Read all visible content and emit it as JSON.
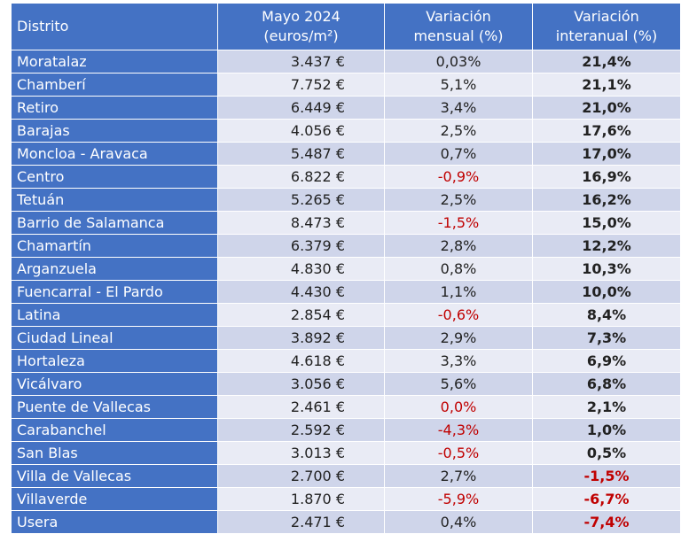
{
  "header": {
    "district": "Distrito",
    "price_l1": "Mayo 2024",
    "price_l2": "(euros/m²)",
    "monthly_l1": "Variación",
    "monthly_l2": "mensual (%)",
    "yearly_l1": "Variación",
    "yearly_l2": "interanual (%)"
  },
  "colors": {
    "header_bg": "#4472c4",
    "row_odd": "#cfd5ea",
    "row_even": "#e9ebf5",
    "negative": "#c00000"
  },
  "rows": [
    {
      "district": "Moratalaz",
      "price": "3.437 €",
      "monthly": "0,03%",
      "yearly": "21,4%"
    },
    {
      "district": "Chamberí",
      "price": "7.752 €",
      "monthly": "5,1%",
      "yearly": "21,1%"
    },
    {
      "district": "Retiro",
      "price": "6.449 €",
      "monthly": "3,4%",
      "yearly": "21,0%"
    },
    {
      "district": "Barajas",
      "price": "4.056 €",
      "monthly": "2,5%",
      "yearly": "17,6%"
    },
    {
      "district": "Moncloa - Aravaca",
      "price": "5.487 €",
      "monthly": "0,7%",
      "yearly": "17,0%"
    },
    {
      "district": "Centro",
      "price": "6.822 €",
      "monthly": "-0,9%",
      "yearly": "16,9%",
      "monthly_neg": true
    },
    {
      "district": "Tetuán",
      "price": "5.265 €",
      "monthly": "2,5%",
      "yearly": "16,2%"
    },
    {
      "district": "Barrio de Salamanca",
      "price": "8.473 €",
      "monthly": "-1,5%",
      "yearly": "15,0%",
      "monthly_neg": true
    },
    {
      "district": "Chamartín",
      "price": "6.379 €",
      "monthly": "2,8%",
      "yearly": "12,2%"
    },
    {
      "district": "Arganzuela",
      "price": "4.830 €",
      "monthly": "0,8%",
      "yearly": "10,3%"
    },
    {
      "district": "Fuencarral - El Pardo",
      "price": "4.430 €",
      "monthly": "1,1%",
      "yearly": "10,0%"
    },
    {
      "district": "Latina",
      "price": "2.854 €",
      "monthly": "-0,6%",
      "yearly": "8,4%",
      "monthly_neg": true
    },
    {
      "district": "Ciudad Lineal",
      "price": "3.892 €",
      "monthly": "2,9%",
      "yearly": "7,3%"
    },
    {
      "district": "Hortaleza",
      "price": "4.618 €",
      "monthly": "3,3%",
      "yearly": "6,9%"
    },
    {
      "district": "Vicálvaro",
      "price": "3.056 €",
      "monthly": "5,6%",
      "yearly": "6,8%"
    },
    {
      "district": "Puente de Vallecas",
      "price": "2.461 €",
      "monthly": "0,0%",
      "yearly": "2,1%",
      "monthly_neg": true
    },
    {
      "district": "Carabanchel",
      "price": "2.592 €",
      "monthly": "-4,3%",
      "yearly": "1,0%",
      "monthly_neg": true
    },
    {
      "district": "San Blas",
      "price": "3.013 €",
      "monthly": "-0,5%",
      "yearly": "0,5%",
      "monthly_neg": true
    },
    {
      "district": "Villa de Vallecas",
      "price": "2.700 €",
      "monthly": "2,7%",
      "yearly": "-1,5%",
      "yearly_neg": true
    },
    {
      "district": "Villaverde",
      "price": "1.870 €",
      "monthly": "-5,9%",
      "yearly": "-6,7%",
      "monthly_neg": true,
      "yearly_neg": true
    },
    {
      "district": "Usera",
      "price": "2.471 €",
      "monthly": "0,4%",
      "yearly": "-7,4%",
      "yearly_neg": true
    }
  ]
}
